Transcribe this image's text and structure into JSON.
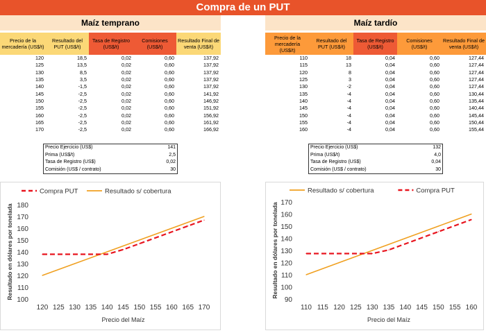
{
  "title": "Compra de un PUT",
  "left": {
    "section_title": "Maíz temprano",
    "headers": [
      "Precio de la mercadería (US$/t)",
      "Resultado del PUT (US$/t)",
      "Tasa de Registro (US$/t)",
      "Comisiones (US$/t)",
      "Resultado Final de venta (US$/t)"
    ],
    "rows": [
      [
        "120",
        "18,5",
        "0,02",
        "0,60",
        "137,92"
      ],
      [
        "125",
        "13,5",
        "0,02",
        "0,60",
        "137,92"
      ],
      [
        "130",
        "8,5",
        "0,02",
        "0,60",
        "137,92"
      ],
      [
        "135",
        "3,5",
        "0,02",
        "0,60",
        "137,92"
      ],
      [
        "140",
        "-1,5",
        "0,02",
        "0,60",
        "137,92"
      ],
      [
        "145",
        "-2,5",
        "0,02",
        "0,60",
        "141,92"
      ],
      [
        "150",
        "-2,5",
        "0,02",
        "0,60",
        "146,92"
      ],
      [
        "155",
        "-2,5",
        "0,02",
        "0,60",
        "151,92"
      ],
      [
        "160",
        "-2,5",
        "0,02",
        "0,60",
        "156,92"
      ],
      [
        "165",
        "-2,5",
        "0,02",
        "0,60",
        "161,92"
      ],
      [
        "170",
        "-2,5",
        "0,02",
        "0,60",
        "166,92"
      ]
    ],
    "params": [
      [
        "Precio Ejercicio (US$)",
        "141"
      ],
      [
        "Prima (US$/t)",
        "2,5"
      ],
      [
        "Tasa de Registro (US$)",
        "0,02"
      ],
      [
        "Comisión (US$ / contrato)",
        "30"
      ]
    ]
  },
  "right": {
    "section_title": "Maíz tardío",
    "headers": [
      "Precio de la mercadería (US$/t)",
      "Resultado del PUT (US$/t)",
      "Tasa de Registro (US$/t)",
      "Comisiones (US$/t)",
      "Resultado Final de venta (US$/t)"
    ],
    "rows": [
      [
        "110",
        "18",
        "0,04",
        "0,60",
        "127,44"
      ],
      [
        "115",
        "13",
        "0,04",
        "0,60",
        "127,44"
      ],
      [
        "120",
        "8",
        "0,04",
        "0,60",
        "127,44"
      ],
      [
        "125",
        "3",
        "0,04",
        "0,60",
        "127,44"
      ],
      [
        "130",
        "-2",
        "0,04",
        "0,60",
        "127,44"
      ],
      [
        "135",
        "-4",
        "0,04",
        "0,60",
        "130,44"
      ],
      [
        "140",
        "-4",
        "0,04",
        "0,60",
        "135,44"
      ],
      [
        "145",
        "-4",
        "0,04",
        "0,60",
        "140,44"
      ],
      [
        "150",
        "-4",
        "0,04",
        "0,60",
        "145,44"
      ],
      [
        "155",
        "-4",
        "0,04",
        "0,60",
        "150,44"
      ],
      [
        "160",
        "-4",
        "0,04",
        "0,60",
        "155,44"
      ]
    ],
    "params": [
      [
        "Precio Ejercicio (US$)",
        "132"
      ],
      [
        "Prima (US$/t)",
        "4,0"
      ],
      [
        "Tasa de Registro (US$)",
        "0,04"
      ],
      [
        "Comisión (US$ / contrato)",
        "30"
      ]
    ]
  },
  "chart_data": [
    {
      "type": "line",
      "xlabel": "Precio del Maíz",
      "ylabel": "Resultado  en dólares por tonelada",
      "ylim": [
        100,
        180
      ],
      "yticks": [
        100,
        110,
        120,
        130,
        140,
        150,
        160,
        170,
        180
      ],
      "x": [
        120,
        125,
        130,
        135,
        140,
        145,
        150,
        155,
        160,
        165,
        170
      ],
      "legend": "top",
      "legend_order": [
        "Compra PUT",
        "Resultado s/ cobertura"
      ],
      "series": [
        {
          "name": "Compra PUT",
          "style": "dashed",
          "color": "#e8141e",
          "values": [
            137.92,
            137.92,
            137.92,
            137.92,
            137.92,
            141.92,
            146.92,
            151.92,
            156.92,
            161.92,
            166.92
          ]
        },
        {
          "name": "Resultado s/ cobertura",
          "style": "solid",
          "color": "#f0a020",
          "values": [
            120,
            125,
            130,
            135,
            140,
            145,
            150,
            155,
            160,
            165,
            170
          ]
        }
      ]
    },
    {
      "type": "line",
      "xlabel": "Precio del Maíz",
      "ylabel": "Resultado  en dólares por tonelada",
      "ylim": [
        90,
        170
      ],
      "yticks": [
        90,
        100,
        110,
        120,
        130,
        140,
        150,
        160,
        170
      ],
      "x": [
        110,
        115,
        120,
        125,
        130,
        135,
        140,
        145,
        150,
        155,
        160
      ],
      "legend": "top",
      "legend_order": [
        "Resultado s/ cobertura",
        "Compra PUT"
      ],
      "series": [
        {
          "name": "Compra PUT",
          "style": "dashed",
          "color": "#e8141e",
          "values": [
            127.44,
            127.44,
            127.44,
            127.44,
            127.44,
            130.44,
            135.44,
            140.44,
            145.44,
            150.44,
            155.44
          ]
        },
        {
          "name": "Resultado s/ cobertura",
          "style": "solid",
          "color": "#f0a020",
          "values": [
            110,
            115,
            120,
            125,
            130,
            135,
            140,
            145,
            150,
            155,
            160
          ]
        }
      ]
    }
  ]
}
